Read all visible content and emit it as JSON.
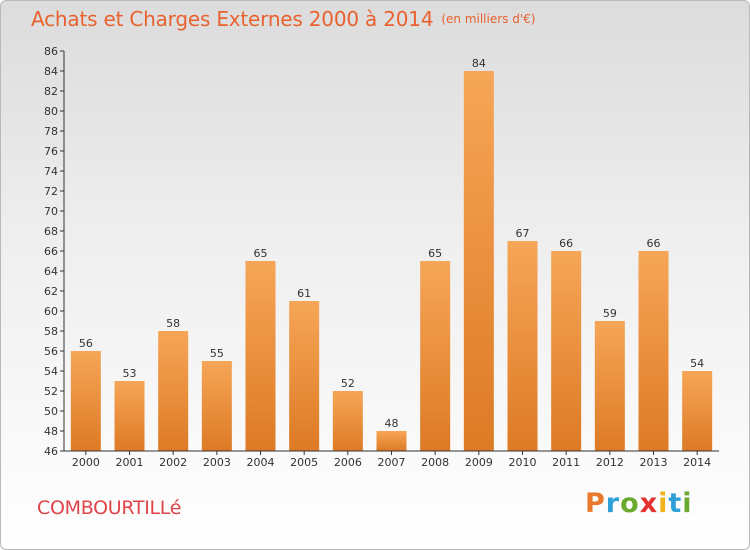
{
  "header": {
    "title": "Achats et Charges Externes 2000 à 2014",
    "subtitle": "(en milliers d'€)"
  },
  "commune": "COMBOURTILLé",
  "logo": {
    "text": "Proxiti",
    "letters": [
      {
        "char": "P",
        "color": "#e8792d"
      },
      {
        "char": "r",
        "color": "#2f9fd8"
      },
      {
        "char": "o",
        "color": "#6aaa2e"
      },
      {
        "char": "x",
        "color": "#e3312f"
      },
      {
        "char": "i",
        "color": "#f2b21c"
      },
      {
        "char": "t",
        "color": "#2f9fd8"
      },
      {
        "char": "i",
        "color": "#6aaa2e"
      }
    ]
  },
  "chart_data": {
    "type": "bar",
    "categories": [
      "2000",
      "2001",
      "2002",
      "2003",
      "2004",
      "2005",
      "2006",
      "2007",
      "2008",
      "2009",
      "2010",
      "2011",
      "2012",
      "2013",
      "2014"
    ],
    "values": [
      56,
      53,
      58,
      55,
      65,
      61,
      52,
      48,
      65,
      84,
      67,
      66,
      59,
      66,
      54
    ],
    "ylim": [
      46,
      86
    ],
    "ytick_step": 2,
    "grid": "none",
    "bar_color_top": "#f6a657",
    "bar_color_bottom": "#dd7a25",
    "title_color": "#e8622f"
  }
}
